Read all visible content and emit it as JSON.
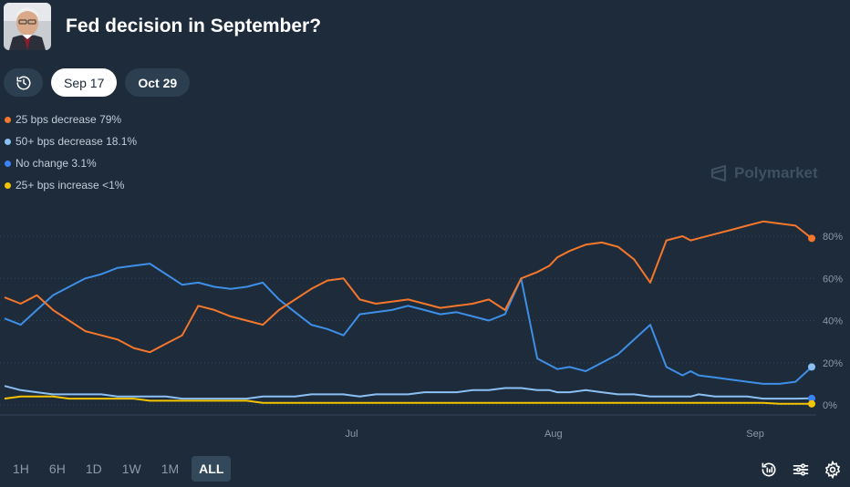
{
  "header": {
    "title": "Fed decision in September?"
  },
  "tabs": [
    {
      "label": "Sep 17",
      "active": true
    },
    {
      "label": "Oct 29",
      "active": false
    }
  ],
  "legend": [
    {
      "label": "25 bps decrease 79%",
      "color": "#f5772b"
    },
    {
      "label": "50+ bps decrease 18.1%",
      "color": "#8cc0f5"
    },
    {
      "label": "No change 3.1%",
      "color": "#3b82f6"
    },
    {
      "label": "25+ bps increase <1%",
      "color": "#f5c400"
    }
  ],
  "brand": {
    "name": "Polymarket"
  },
  "time_ranges": [
    {
      "label": "1H",
      "active": false
    },
    {
      "label": "6H",
      "active": false
    },
    {
      "label": "1D",
      "active": false
    },
    {
      "label": "1W",
      "active": false
    },
    {
      "label": "1M",
      "active": false
    },
    {
      "label": "ALL",
      "active": true
    }
  ],
  "icons": [
    "history-icon",
    "replay-icon",
    "filter-sliders-icon",
    "gear-icon"
  ],
  "chart_data": {
    "type": "line",
    "xlabel": "",
    "ylabel": "",
    "y_ticks": [
      "0%",
      "20%",
      "40%",
      "60%",
      "80%"
    ],
    "ylim": [
      0,
      100
    ],
    "x_ticks": [
      "Jul",
      "Aug",
      "Sep"
    ],
    "x_tick_positions": [
      0.43,
      0.68,
      0.93
    ],
    "grid": true,
    "series": [
      {
        "name": "25 bps decrease",
        "color": "#f5772b",
        "x": [
          0,
          0.02,
          0.04,
          0.06,
          0.08,
          0.1,
          0.12,
          0.14,
          0.16,
          0.18,
          0.2,
          0.22,
          0.24,
          0.26,
          0.28,
          0.3,
          0.32,
          0.34,
          0.36,
          0.38,
          0.4,
          0.42,
          0.44,
          0.46,
          0.48,
          0.5,
          0.52,
          0.54,
          0.56,
          0.58,
          0.6,
          0.62,
          0.64,
          0.66,
          0.675,
          0.685,
          0.7,
          0.72,
          0.74,
          0.76,
          0.78,
          0.8,
          0.82,
          0.84,
          0.85,
          0.86,
          0.88,
          0.9,
          0.92,
          0.94,
          0.96,
          0.98,
          1.0
        ],
        "y": [
          51,
          48,
          52,
          45,
          40,
          35,
          33,
          31,
          27,
          25,
          29,
          33,
          47,
          45,
          42,
          40,
          38,
          45,
          50,
          55,
          59,
          60,
          50,
          48,
          49,
          50,
          48,
          46,
          47,
          48,
          50,
          45,
          60,
          63,
          66,
          70,
          73,
          76,
          77,
          75,
          69,
          58,
          78,
          80,
          78,
          79,
          81,
          83,
          85,
          87,
          86,
          85,
          79
        ]
      },
      {
        "name": "50+ bps decrease",
        "color": "#3e8fe8",
        "x": [
          0,
          0.02,
          0.04,
          0.06,
          0.08,
          0.1,
          0.12,
          0.14,
          0.16,
          0.18,
          0.2,
          0.22,
          0.24,
          0.26,
          0.28,
          0.3,
          0.32,
          0.34,
          0.36,
          0.38,
          0.4,
          0.42,
          0.44,
          0.46,
          0.48,
          0.5,
          0.52,
          0.54,
          0.56,
          0.58,
          0.6,
          0.62,
          0.64,
          0.66,
          0.675,
          0.685,
          0.7,
          0.72,
          0.74,
          0.76,
          0.78,
          0.8,
          0.82,
          0.84,
          0.85,
          0.86,
          0.88,
          0.9,
          0.92,
          0.94,
          0.96,
          0.98,
          1.0
        ],
        "y": [
          41,
          38,
          45,
          52,
          56,
          60,
          62,
          65,
          66,
          67,
          62,
          57,
          58,
          56,
          55,
          56,
          58,
          50,
          44,
          38,
          36,
          33,
          43,
          44,
          45,
          47,
          45,
          43,
          44,
          42,
          40,
          43,
          60,
          22,
          19,
          17,
          18,
          16,
          20,
          24,
          31,
          38,
          18,
          14,
          16,
          14,
          13,
          12,
          11,
          10,
          10,
          11,
          18
        ]
      },
      {
        "name": "No change",
        "color": "#8cc0f5",
        "x": [
          0,
          0.02,
          0.04,
          0.06,
          0.08,
          0.1,
          0.12,
          0.14,
          0.16,
          0.18,
          0.2,
          0.22,
          0.24,
          0.26,
          0.28,
          0.3,
          0.32,
          0.34,
          0.36,
          0.38,
          0.4,
          0.42,
          0.44,
          0.46,
          0.48,
          0.5,
          0.52,
          0.54,
          0.56,
          0.58,
          0.6,
          0.62,
          0.64,
          0.66,
          0.675,
          0.685,
          0.7,
          0.72,
          0.74,
          0.76,
          0.78,
          0.8,
          0.82,
          0.84,
          0.85,
          0.86,
          0.88,
          0.9,
          0.92,
          0.94,
          0.96,
          0.98,
          1.0
        ],
        "y": [
          9,
          7,
          6,
          5,
          5,
          5,
          5,
          4,
          4,
          4,
          4,
          3,
          3,
          3,
          3,
          3,
          4,
          4,
          4,
          5,
          5,
          5,
          4,
          5,
          5,
          5,
          6,
          6,
          6,
          7,
          7,
          8,
          8,
          7,
          7,
          6,
          6,
          7,
          6,
          5,
          5,
          4,
          4,
          4,
          4,
          5,
          4,
          4,
          4,
          3,
          3,
          3,
          3.1
        ]
      },
      {
        "name": "25+ bps increase",
        "color": "#f5c400",
        "x": [
          0,
          0.02,
          0.04,
          0.06,
          0.08,
          0.1,
          0.12,
          0.14,
          0.16,
          0.18,
          0.2,
          0.22,
          0.24,
          0.26,
          0.28,
          0.3,
          0.32,
          0.34,
          0.36,
          0.38,
          0.4,
          0.42,
          0.44,
          0.46,
          0.48,
          0.5,
          0.52,
          0.54,
          0.56,
          0.58,
          0.6,
          0.62,
          0.64,
          0.66,
          0.675,
          0.685,
          0.7,
          0.72,
          0.74,
          0.76,
          0.78,
          0.8,
          0.82,
          0.84,
          0.85,
          0.86,
          0.88,
          0.9,
          0.92,
          0.94,
          0.96,
          0.98,
          1.0
        ],
        "y": [
          3,
          4,
          4,
          4,
          3,
          3,
          3,
          3,
          3,
          2,
          2,
          2,
          2,
          2,
          2,
          2,
          1,
          1,
          1,
          1,
          1,
          1,
          1,
          1,
          1,
          1,
          1,
          1,
          1,
          1,
          1,
          1,
          1,
          1,
          1,
          1,
          1,
          1,
          1,
          1,
          1,
          1,
          1,
          1,
          1,
          1,
          1,
          1,
          1,
          1,
          0.5,
          0.5,
          0.5
        ]
      }
    ]
  }
}
